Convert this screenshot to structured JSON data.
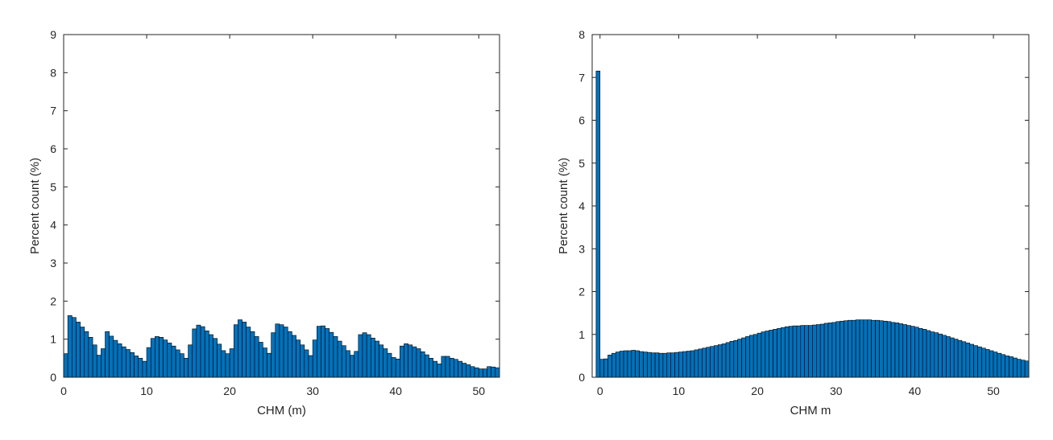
{
  "colors": {
    "bar_fill": "#0072BD",
    "bar_edge": "#000000",
    "axis": "#262626"
  },
  "chart_data": [
    {
      "type": "bar",
      "xlabel": "CHM (m)",
      "ylabel": "Percent count (%)",
      "xlim": [
        0,
        52.5
      ],
      "ylim": [
        0,
        9
      ],
      "xticks": [
        0,
        10,
        20,
        30,
        40,
        50
      ],
      "yticks": [
        0,
        1,
        2,
        3,
        4,
        5,
        6,
        7,
        8,
        9
      ],
      "grid": false,
      "bin_start": 0,
      "bin_width": 0.5,
      "values": [
        0.62,
        1.62,
        1.57,
        1.45,
        1.32,
        1.2,
        1.05,
        0.85,
        0.58,
        0.75,
        1.2,
        1.08,
        0.97,
        0.88,
        0.8,
        0.73,
        0.65,
        0.56,
        0.5,
        0.42,
        0.78,
        1.02,
        1.07,
        1.05,
        0.98,
        0.9,
        0.82,
        0.72,
        0.62,
        0.5,
        0.85,
        1.27,
        1.37,
        1.33,
        1.22,
        1.12,
        1.02,
        0.87,
        0.7,
        0.62,
        0.75,
        1.38,
        1.51,
        1.45,
        1.32,
        1.2,
        1.07,
        0.92,
        0.77,
        0.63,
        1.17,
        1.4,
        1.38,
        1.32,
        1.2,
        1.1,
        0.98,
        0.85,
        0.72,
        0.57,
        0.98,
        1.34,
        1.35,
        1.28,
        1.18,
        1.07,
        0.95,
        0.83,
        0.7,
        0.58,
        0.68,
        1.12,
        1.17,
        1.12,
        1.03,
        0.95,
        0.85,
        0.75,
        0.63,
        0.52,
        0.48,
        0.82,
        0.88,
        0.85,
        0.8,
        0.75,
        0.67,
        0.59,
        0.5,
        0.42,
        0.35,
        0.55,
        0.55,
        0.5,
        0.47,
        0.42,
        0.37,
        0.33,
        0.28,
        0.25,
        0.22,
        0.22,
        0.28,
        0.27,
        0.25,
        0.2
      ]
    },
    {
      "type": "bar",
      "xlabel": "CHM m",
      "ylabel": "Percent count (%)",
      "xlim": [
        -1,
        54.5
      ],
      "ylim": [
        0,
        8
      ],
      "xticks": [
        0,
        10,
        20,
        30,
        40,
        50
      ],
      "yticks": [
        0,
        1,
        2,
        3,
        4,
        5,
        6,
        7,
        8
      ],
      "grid": false,
      "bin_start": -0.5,
      "bin_width": 0.5,
      "values": [
        7.15,
        0.42,
        0.43,
        0.52,
        0.56,
        0.59,
        0.61,
        0.62,
        0.62,
        0.63,
        0.62,
        0.6,
        0.59,
        0.58,
        0.57,
        0.57,
        0.56,
        0.56,
        0.57,
        0.57,
        0.58,
        0.59,
        0.6,
        0.61,
        0.62,
        0.64,
        0.66,
        0.68,
        0.7,
        0.72,
        0.74,
        0.76,
        0.78,
        0.81,
        0.84,
        0.86,
        0.89,
        0.92,
        0.95,
        0.98,
        1.0,
        1.03,
        1.06,
        1.08,
        1.1,
        1.12,
        1.14,
        1.16,
        1.18,
        1.19,
        1.2,
        1.2,
        1.21,
        1.21,
        1.21,
        1.22,
        1.23,
        1.24,
        1.26,
        1.27,
        1.28,
        1.3,
        1.31,
        1.32,
        1.33,
        1.33,
        1.34,
        1.34,
        1.34,
        1.34,
        1.33,
        1.33,
        1.32,
        1.31,
        1.3,
        1.28,
        1.27,
        1.25,
        1.23,
        1.21,
        1.19,
        1.17,
        1.14,
        1.12,
        1.09,
        1.06,
        1.04,
        1.01,
        0.98,
        0.95,
        0.92,
        0.89,
        0.86,
        0.83,
        0.8,
        0.77,
        0.74,
        0.71,
        0.68,
        0.65,
        0.62,
        0.59,
        0.56,
        0.53,
        0.5,
        0.48,
        0.45,
        0.42,
        0.4,
        0.38,
        0.36,
        0.34,
        0.32,
        0.3,
        0.28,
        0.26,
        0.24,
        0.22,
        0.21,
        0.2
      ]
    }
  ]
}
